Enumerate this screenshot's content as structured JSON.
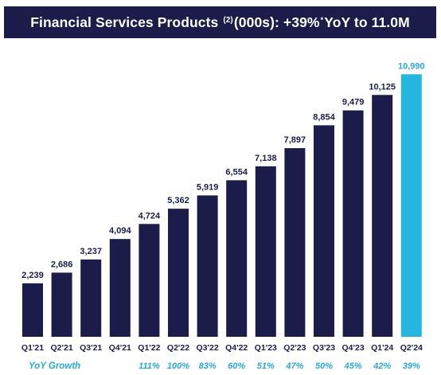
{
  "header": {
    "title_main": "Financial Services Products",
    "title_sup": "(2)",
    "title_mid": " (000s): +39%",
    "title_sup_star": "*",
    "title_end": " YoY to 11.0M"
  },
  "colors": {
    "header_bg": "#1c1c4a",
    "bar": "#1c1c4a",
    "highlight_bar": "#25b6e0",
    "accent_text": "#2aa8d8"
  },
  "chart_data": {
    "type": "bar",
    "categories": [
      "Q1'21",
      "Q2'21",
      "Q3'21",
      "Q4'21",
      "Q1'22",
      "Q2'22",
      "Q3'22",
      "Q4'22",
      "Q1'23",
      "Q2'23",
      "Q3'23",
      "Q4'23",
      "Q1'24",
      "Q2'24"
    ],
    "values": [
      2239,
      2686,
      3237,
      4094,
      4724,
      5362,
      5919,
      6554,
      7138,
      7897,
      8854,
      9479,
      10125,
      10990
    ],
    "value_labels": [
      "2,239",
      "2,686",
      "3,237",
      "4,094",
      "4,724",
      "5,362",
      "5,919",
      "6,554",
      "7,138",
      "7,897",
      "8,854",
      "9,479",
      "10,125",
      "10,990"
    ],
    "highlight_index": 13,
    "ylim": [
      0,
      11500
    ],
    "yoy_label": "YoY Growth",
    "yoy_growth": [
      "",
      "",
      "",
      "",
      "111%",
      "100%",
      "83%",
      "60%",
      "51%",
      "47%",
      "50%",
      "45%",
      "42%",
      "39%"
    ],
    "grid": false,
    "legend": "none"
  }
}
